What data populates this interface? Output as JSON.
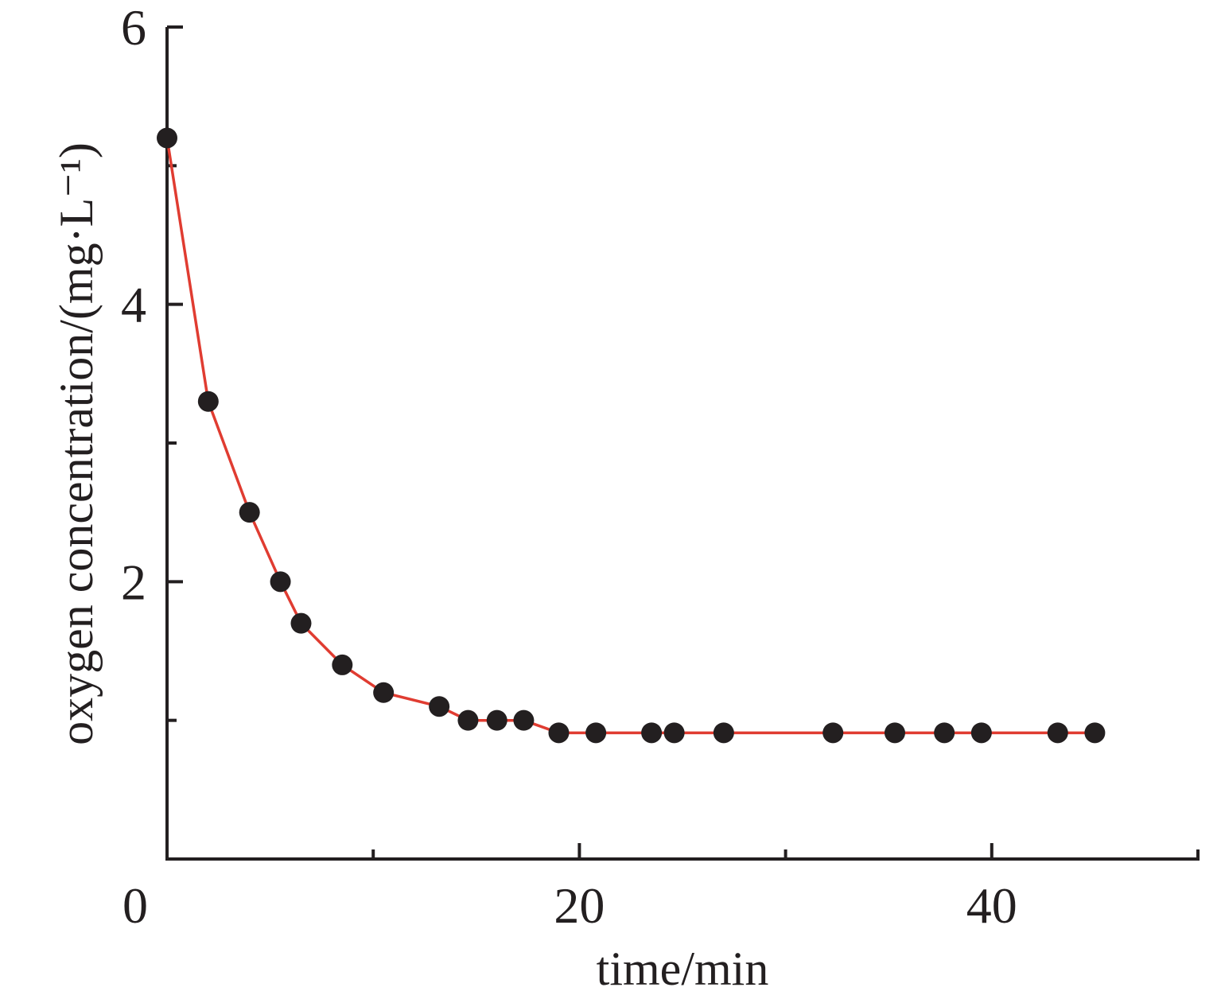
{
  "chart_data": {
    "type": "line",
    "xlabel": "time/min",
    "ylabel": "oxygen concentration/(mg·L⁻¹)",
    "xlim": [
      0,
      50
    ],
    "ylim": [
      0,
      6
    ],
    "x_ticks": [
      0,
      20,
      40
    ],
    "x_minor_ticks": [
      10,
      30,
      50
    ],
    "y_ticks": [
      6,
      4,
      2
    ],
    "y_minor_ticks": [
      1,
      3,
      5
    ],
    "grid": false,
    "legend": "none",
    "series": [
      {
        "line_color": "#e03c31",
        "marker_color": "#231f20",
        "x": [
          0,
          2,
          4,
          5.5,
          6.5,
          8.5,
          10.5,
          13.2,
          14.6,
          16,
          17.3,
          19,
          20.8,
          23.5,
          24.6,
          27,
          32.3,
          35.3,
          37.7,
          39.5,
          43.2,
          45
        ],
        "y": [
          5.2,
          3.3,
          2.5,
          2.0,
          1.7,
          1.4,
          1.2,
          1.1,
          1.0,
          1.0,
          1.0,
          0.91,
          0.91,
          0.91,
          0.91,
          0.91,
          0.91,
          0.91,
          0.91,
          0.91,
          0.91,
          0.91
        ]
      }
    ]
  }
}
